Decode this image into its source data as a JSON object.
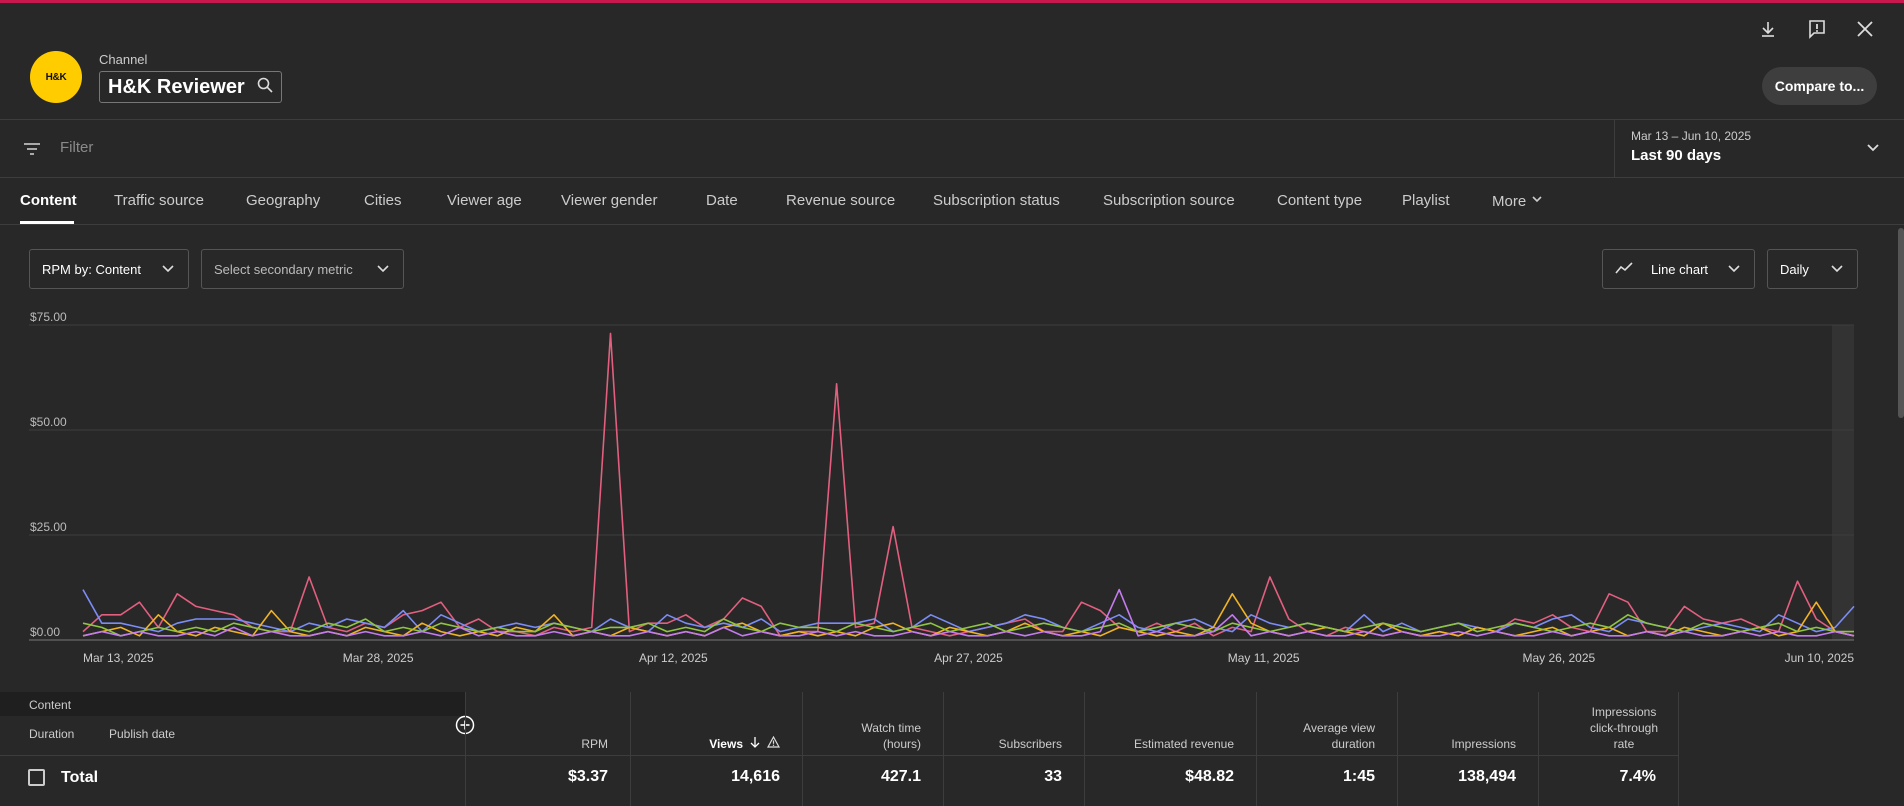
{
  "header": {
    "channel_label": "Channel",
    "channel_name": "H&K Reviewer",
    "avatar_text": "H&K",
    "compare_label": "Compare to...",
    "accent_color": "#c8194f"
  },
  "filter": {
    "placeholder": "Filter",
    "date_range": "Mar 13 – Jun 10, 2025",
    "period": "Last 90 days"
  },
  "tabs": [
    {
      "label": "Content"
    },
    {
      "label": "Traffic source"
    },
    {
      "label": "Geography"
    },
    {
      "label": "Cities"
    },
    {
      "label": "Viewer age"
    },
    {
      "label": "Viewer gender"
    },
    {
      "label": "Date"
    },
    {
      "label": "Revenue source"
    },
    {
      "label": "Subscription status"
    },
    {
      "label": "Subscription source"
    },
    {
      "label": "Content type"
    },
    {
      "label": "Playlist"
    },
    {
      "label": "More"
    }
  ],
  "controls": {
    "primary_metric": "RPM by: Content",
    "secondary_metric": "Select secondary metric",
    "chart_type": "Line chart",
    "granularity": "Daily"
  },
  "chart_data": {
    "type": "line",
    "x_labels": [
      "Mar 13, 2025",
      "Mar 28, 2025",
      "Apr 12, 2025",
      "Apr 27, 2025",
      "May 11, 2025",
      "May 26, 2025",
      "Jun 10, 2025"
    ],
    "y_ticks": [
      "$0.00",
      "$25.00",
      "$50.00",
      "$75.00"
    ],
    "ylim": [
      0,
      75
    ],
    "grid": true,
    "series": [
      {
        "color": "#e35f7f",
        "values": [
          2,
          6,
          6,
          9,
          3,
          11,
          8,
          7,
          6,
          3,
          2,
          2,
          15,
          3,
          2,
          4,
          3,
          6,
          7,
          9,
          3,
          5,
          2,
          2,
          1,
          3,
          2,
          3,
          73,
          2,
          4,
          4,
          6,
          3,
          5,
          10,
          8,
          1,
          2,
          2,
          61,
          3,
          4,
          27,
          3,
          2,
          1,
          2,
          3,
          4,
          5,
          2,
          2,
          9,
          7,
          3,
          2,
          4,
          2,
          4,
          1,
          3,
          2,
          15,
          5,
          2,
          1,
          3,
          2,
          1,
          2,
          1,
          2,
          1,
          3,
          2,
          5,
          4,
          6,
          3,
          2,
          11,
          9,
          2,
          2,
          8,
          5,
          4,
          5,
          3,
          2,
          14,
          5,
          2,
          1
        ]
      },
      {
        "color": "#7b8df7",
        "values": [
          12,
          4,
          4,
          3,
          2,
          4,
          5,
          5,
          5,
          4,
          3,
          2,
          4,
          3,
          5,
          4,
          3,
          7,
          2,
          6,
          4,
          2,
          3,
          4,
          3,
          4,
          3,
          2,
          5,
          3,
          2,
          6,
          4,
          3,
          4,
          3,
          5,
          2,
          3,
          4,
          4,
          4,
          5,
          2,
          3,
          6,
          4,
          2,
          3,
          4,
          6,
          5,
          3,
          2,
          4,
          6,
          3,
          2,
          4,
          5,
          3,
          2,
          6,
          4,
          3,
          4,
          3,
          2,
          6,
          2,
          4,
          2,
          3,
          4,
          3,
          2,
          4,
          3,
          5,
          6,
          3,
          2,
          5,
          4,
          3,
          2,
          3,
          4,
          3,
          2,
          6,
          4,
          2,
          3,
          8
        ]
      },
      {
        "color": "#f0b323",
        "values": [
          1,
          2,
          3,
          1,
          6,
          2,
          1,
          3,
          2,
          1,
          7,
          2,
          1,
          2,
          1,
          3,
          2,
          1,
          4,
          2,
          1,
          2,
          1,
          3,
          2,
          6,
          1,
          2,
          1,
          3,
          2,
          1,
          2,
          1,
          3,
          4,
          2,
          1,
          2,
          1,
          2,
          1,
          3,
          4,
          2,
          1,
          3,
          2,
          1,
          2,
          4,
          2,
          1,
          2,
          1,
          3,
          2,
          1,
          2,
          1,
          3,
          11,
          4,
          2,
          1,
          2,
          3,
          2,
          1,
          4,
          2,
          1,
          2,
          1,
          3,
          2,
          1,
          2,
          3,
          1,
          2,
          3,
          1,
          2,
          1,
          3,
          2,
          1,
          2,
          3,
          1,
          2,
          9,
          2,
          1
        ]
      },
      {
        "color": "#8fc641",
        "values": [
          4,
          3,
          1,
          2,
          3,
          2,
          3,
          2,
          4,
          3,
          2,
          3,
          2,
          4,
          3,
          5,
          2,
          3,
          2,
          4,
          3,
          2,
          3,
          2,
          2,
          4,
          3,
          2,
          3,
          3,
          4,
          2,
          3,
          2,
          5,
          3,
          2,
          4,
          3,
          3,
          2,
          4,
          3,
          2,
          3,
          4,
          2,
          3,
          4,
          2,
          3,
          4,
          3,
          2,
          3,
          4,
          2,
          3,
          4,
          3,
          2,
          4,
          3,
          2,
          3,
          4,
          3,
          2,
          3,
          4,
          3,
          2,
          3,
          4,
          2,
          3,
          4,
          3,
          2,
          3,
          4,
          3,
          6,
          4,
          3,
          2,
          4,
          3,
          2,
          3,
          4,
          2,
          3,
          2,
          2
        ]
      },
      {
        "color": "#c57bf0",
        "values": [
          1,
          2,
          1,
          2,
          1,
          1,
          2,
          1,
          3,
          1,
          2,
          1,
          1,
          2,
          1,
          2,
          1,
          1,
          2,
          1,
          3,
          1,
          2,
          1,
          1,
          2,
          1,
          2,
          1,
          1,
          2,
          1,
          2,
          1,
          3,
          1,
          2,
          1,
          1,
          2,
          1,
          2,
          1,
          1,
          2,
          1,
          2,
          1,
          1,
          2,
          1,
          2,
          1,
          1,
          2,
          12,
          1,
          2,
          1,
          1,
          2,
          6,
          1,
          2,
          1,
          2,
          1,
          1,
          2,
          1,
          2,
          1,
          1,
          2,
          1,
          2,
          1,
          1,
          2,
          1,
          2,
          1,
          1,
          2,
          1,
          2,
          1,
          1,
          2,
          1,
          2,
          1,
          1,
          2,
          1
        ]
      }
    ]
  },
  "table": {
    "content_header": "Content",
    "duration_label": "Duration",
    "publish_label": "Publish date",
    "total_label": "Total",
    "columns": [
      {
        "label_lines": [
          "RPM"
        ],
        "value": "$3.37"
      },
      {
        "label_lines": [
          "Views"
        ],
        "value": "14,616"
      },
      {
        "label_lines": [
          "Watch time",
          "(hours)"
        ],
        "value": "427.1"
      },
      {
        "label_lines": [
          "Subscribers"
        ],
        "value": "33"
      },
      {
        "label_lines": [
          "Estimated revenue"
        ],
        "value": "$48.82"
      },
      {
        "label_lines": [
          "Average view",
          "duration"
        ],
        "value": "1:45"
      },
      {
        "label_lines": [
          "Impressions"
        ],
        "value": "138,494"
      },
      {
        "label_lines": [
          "Impressions",
          "click-through",
          "rate"
        ],
        "value": "7.4%"
      }
    ]
  }
}
